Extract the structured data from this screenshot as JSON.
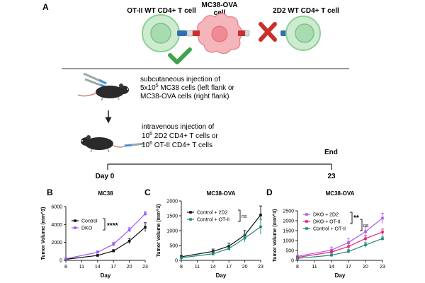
{
  "panelA": {
    "letter": "A",
    "label_left": "OT-II WT CD4+ T cell",
    "label_center_line1": "MC38-OVA",
    "label_center_line2": "cell",
    "label_right": "2D2 WT CD4+ T cell",
    "step1_line1": "subcutaneous injection of",
    "step1_line2_base": "5x10",
    "step1_line2_sup": "5",
    "step1_line2_rest": " MC38 cells (left flank or",
    "step1_line3": "MC38-OVA cells (right flank)",
    "step2_line1": "intravenous injection of",
    "step2_line2_base": "10",
    "step2_line2_sup": "6",
    "step2_line2_rest": " 2D2 CD4+ T cells or",
    "step2_line3_base": "10",
    "step2_line3_sup": "6",
    "step2_line3_rest": " OT-II CD4+ T cells",
    "timeline_start": "Day 0",
    "timeline_end_label": "End",
    "timeline_end_day": "23",
    "colors": {
      "t_cell": "#a8dcb0",
      "tumor_cell": "#f2a3a8",
      "check": "#3fa34d",
      "cross": "#c9302c"
    }
  },
  "chart_data": [
    {
      "letter": "B",
      "type": "line",
      "title": "MC38",
      "xlabel": "Day",
      "ylabel": "Tumor Volume (mm^3)",
      "x": [
        8,
        11,
        14,
        17,
        20,
        23
      ],
      "ylim": [
        0,
        6000
      ],
      "yticks": [
        "0",
        "2000",
        "4000",
        "6000"
      ],
      "series": [
        {
          "name": "Control",
          "color": "#111111",
          "x": [
            8,
            14,
            17,
            20,
            23
          ],
          "values": [
            120,
            550,
            1050,
            2150,
            3700
          ],
          "err": [
            40,
            100,
            150,
            300,
            500
          ]
        },
        {
          "name": "DKO",
          "color": "#9b59f5",
          "x": [
            8,
            14,
            17,
            20,
            23
          ],
          "values": [
            180,
            900,
            1800,
            3400,
            5200
          ],
          "err": [
            50,
            150,
            200,
            250,
            250
          ]
        }
      ],
      "annotation": "****"
    },
    {
      "letter": "C",
      "type": "line",
      "title": "MC38-OVA",
      "xlabel": "Day",
      "ylabel": "Tumor Volume (mm^3)",
      "x": [
        8,
        11,
        14,
        17,
        20,
        23
      ],
      "ylim": [
        0,
        2000
      ],
      "yticks": [
        "0",
        "500",
        "1000",
        "1500",
        "2000"
      ],
      "series": [
        {
          "name": "Control + 2D2",
          "color": "#111111",
          "x": [
            8,
            14,
            17,
            20,
            23
          ],
          "values": [
            120,
            300,
            480,
            850,
            1530
          ],
          "err": [
            40,
            80,
            100,
            150,
            300
          ]
        },
        {
          "name": "Control + OT-II",
          "color": "#1f8a7a",
          "x": [
            8,
            14,
            17,
            20,
            23
          ],
          "values": [
            90,
            220,
            400,
            750,
            1130
          ],
          "err": [
            30,
            60,
            90,
            130,
            250
          ]
        }
      ],
      "annotation": "ns"
    },
    {
      "letter": "D",
      "type": "line",
      "title": "MC38-OVA",
      "xlabel": "Day",
      "ylabel": "Tumor Volume (mm^3)",
      "x": [
        8,
        11,
        14,
        17,
        20,
        23
      ],
      "ylim": [
        0,
        2500
      ],
      "yticks": [
        "0",
        "500",
        "1000",
        "1500",
        "2000",
        "2500"
      ],
      "series": [
        {
          "name": "DKO + 2D2",
          "color": "#b259f5",
          "x": [
            8,
            14,
            17,
            20,
            23
          ],
          "values": [
            200,
            520,
            900,
            1450,
            2130
          ],
          "err": [
            50,
            150,
            200,
            250,
            250
          ]
        },
        {
          "name": "DKO + OT-II",
          "color": "#e8227a",
          "x": [
            8,
            14,
            17,
            20,
            23
          ],
          "values": [
            150,
            420,
            700,
            1100,
            1430
          ],
          "err": [
            40,
            100,
            150,
            150,
            150
          ]
        },
        {
          "name": "Control + OT-II",
          "color": "#1f8a7a",
          "x": [
            8,
            14,
            17,
            20,
            23
          ],
          "values": [
            100,
            260,
            450,
            780,
            1100
          ],
          "err": [
            30,
            60,
            90,
            120,
            120
          ]
        }
      ],
      "annotation_top": "**",
      "annotation_bottom": "ns"
    }
  ]
}
